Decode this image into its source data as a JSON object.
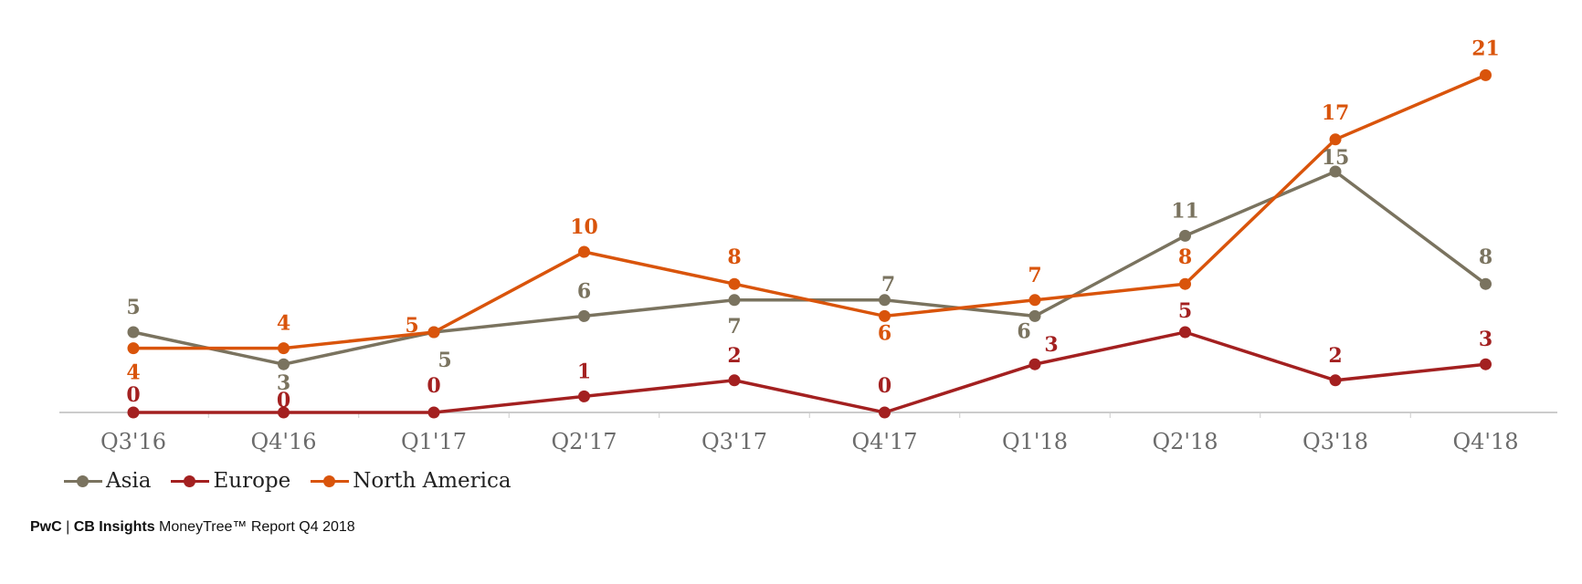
{
  "colors": {
    "asia": "#7a735f",
    "europe": "#a32020",
    "north_america": "#d9540b",
    "axis": "#cccccc"
  },
  "chart_data": {
    "type": "line",
    "categories": [
      "Q3'16",
      "Q4'16",
      "Q1'17",
      "Q2'17",
      "Q3'17",
      "Q4'17",
      "Q1'18",
      "Q2'18",
      "Q3'18",
      "Q4'18"
    ],
    "ylim": [
      0,
      21
    ],
    "grid": false,
    "legend_position": "bottom-left",
    "series": [
      {
        "name": "Asia",
        "values": [
          5,
          3,
          5,
          6,
          7,
          7,
          6,
          11,
          15,
          8
        ]
      },
      {
        "name": "Europe",
        "values": [
          0,
          0,
          0,
          1,
          2,
          0,
          3,
          5,
          2,
          3
        ]
      },
      {
        "name": "North America",
        "values": [
          4,
          4,
          5,
          10,
          8,
          6,
          7,
          8,
          17,
          21
        ]
      }
    ]
  },
  "footer": {
    "brand1": "PwC",
    "sep": " | ",
    "brand2": "CB Insights",
    "rest": " MoneyTree™  Report Q4 2018"
  }
}
